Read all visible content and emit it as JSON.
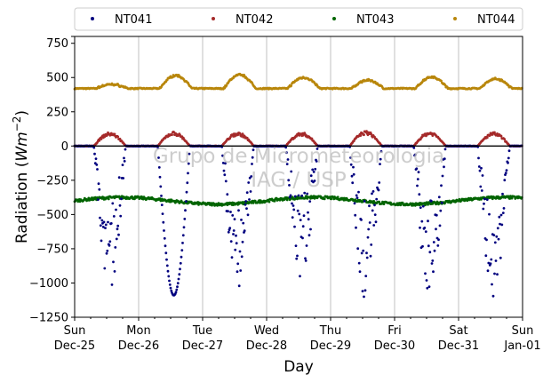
{
  "chart_data": {
    "type": "scatter",
    "xlabel": "Day",
    "ylabel_main": "Radiation (",
    "ylabel_italic": "Wm",
    "ylabel_sup": "−2",
    "ylabel_end": ")",
    "ylim": [
      -1250,
      800
    ],
    "xlim": [
      "2016-12-25",
      "2017-01-01"
    ],
    "yticks": [
      800,
      750,
      500,
      250,
      0,
      -250,
      -500,
      -750,
      -1000,
      -1250
    ],
    "ytick_labels": [
      "",
      "750",
      "500",
      "250",
      "0",
      "−250",
      "−500",
      "−750",
      "−1000",
      "−1250"
    ],
    "xticks": [
      {
        "day": "Sun",
        "date": "Dec-25"
      },
      {
        "day": "Mon",
        "date": "Dec-26"
      },
      {
        "day": "Tue",
        "date": "Dec-27"
      },
      {
        "day": "Wed",
        "date": "Dec-28"
      },
      {
        "day": "Thu",
        "date": "Dec-29"
      },
      {
        "day": "Fri",
        "date": "Dec-30"
      },
      {
        "day": "Sat",
        "date": "Dec-31"
      },
      {
        "day": "Sun",
        "date": "Jan-01"
      }
    ],
    "grid_x": true,
    "zero_line": true,
    "legend_position": "top",
    "series": [
      {
        "name": "NT041",
        "color": "#00007f",
        "description_shape": "daytime negative dips",
        "daily_min": [
          -1060,
          -1090,
          -1080,
          -990,
          -1130,
          -1120,
          -1160
        ]
      },
      {
        "name": "NT042",
        "color": "#a52a2a",
        "description_shape": "daytime positive humps",
        "daily_max": [
          100,
          105,
          100,
          100,
          110,
          105,
          100
        ]
      },
      {
        "name": "NT043",
        "color": "#006400",
        "description_shape": "nearly flat around -400",
        "level": -400
      },
      {
        "name": "NT044",
        "color": "#b8860b",
        "description_shape": "baseline ~420 with daytime humps",
        "baseline": 420,
        "daily_max": [
          450,
          515,
          520,
          500,
          480,
          505,
          490
        ]
      }
    ],
    "watermark": [
      "Grupo de Micrometeorologia",
      "IAG / USP"
    ]
  }
}
